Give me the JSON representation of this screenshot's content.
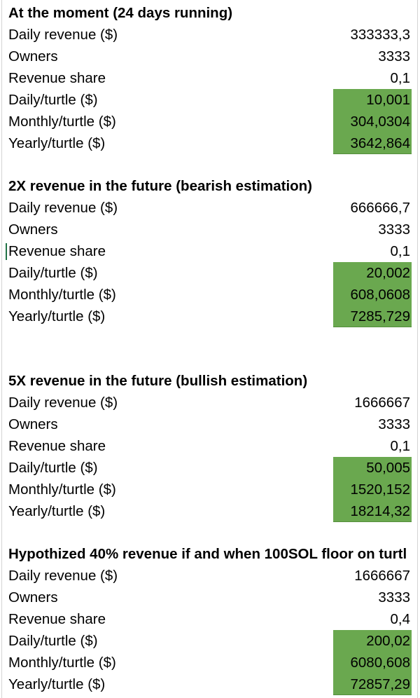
{
  "colors": {
    "highlight": "#6aa84f",
    "gridline": "#d4d4d4"
  },
  "sections": [
    {
      "title": "At the moment (24 days running)",
      "rows": [
        {
          "label": "Daily revenue ($)",
          "value": "333333,3",
          "highlight": false
        },
        {
          "label": "Owners",
          "value": "3333",
          "highlight": false
        },
        {
          "label": "Revenue share",
          "value": "0,1",
          "highlight": false
        },
        {
          "label": "Daily/turtle ($)",
          "value": "10,001",
          "highlight": true
        },
        {
          "label": "Monthly/turtle ($)",
          "value": "304,0304",
          "highlight": true
        },
        {
          "label": "Yearly/turtle ($)",
          "value": "3642,864",
          "highlight": true
        }
      ]
    },
    {
      "title": "2X revenue in the future (bearish estimation)",
      "rows": [
        {
          "label": "Daily revenue ($)",
          "value": "666666,7",
          "highlight": false
        },
        {
          "label": "Owners",
          "value": "3333",
          "highlight": false
        },
        {
          "label": "Revenue share",
          "value": "0,1",
          "highlight": false
        },
        {
          "label": "Daily/turtle ($)",
          "value": "20,002",
          "highlight": true
        },
        {
          "label": "Monthly/turtle ($)",
          "value": "608,0608",
          "highlight": true
        },
        {
          "label": "Yearly/turtle ($)",
          "value": "7285,729",
          "highlight": true
        }
      ]
    },
    {
      "title": "5X revenue in the future (bullish estimation)",
      "rows": [
        {
          "label": "Daily revenue ($)",
          "value": "1666667",
          "highlight": false
        },
        {
          "label": "Owners",
          "value": "3333",
          "highlight": false
        },
        {
          "label": "Revenue share",
          "value": "0,1",
          "highlight": false
        },
        {
          "label": "Daily/turtle ($)",
          "value": "50,005",
          "highlight": true
        },
        {
          "label": "Monthly/turtle ($)",
          "value": "1520,152",
          "highlight": true
        },
        {
          "label": "Yearly/turtle ($)",
          "value": "18214,32",
          "highlight": true
        }
      ]
    },
    {
      "title": "Hypothized 40% revenue if and when 100SOL floor on turtl",
      "rows": [
        {
          "label": "Daily revenue ($)",
          "value": "1666667",
          "highlight": false
        },
        {
          "label": "Owners",
          "value": "3333",
          "highlight": false
        },
        {
          "label": "Revenue share",
          "value": "0,4",
          "highlight": false
        },
        {
          "label": "Daily/turtle ($)",
          "value": "200,02",
          "highlight": true
        },
        {
          "label": "Monthly/turtle ($)",
          "value": "6080,608",
          "highlight": true
        },
        {
          "label": "Yearly/turtle ($)",
          "value": "72857,29",
          "highlight": true
        }
      ]
    }
  ]
}
